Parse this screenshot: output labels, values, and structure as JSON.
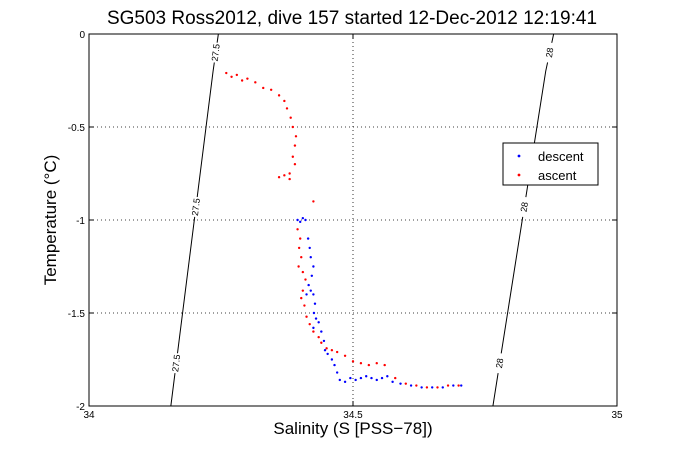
{
  "chart_data": {
    "type": "scatter",
    "title": "SG503 Ross2012, dive 157 started 12-Dec-2012 12:19:41",
    "xlabel": "Salinity (S [PSS−78])",
    "ylabel": "Temperature (°C)",
    "xlim": [
      34,
      35
    ],
    "ylim": [
      -2,
      0
    ],
    "x_ticks": [
      "34",
      "34.5",
      "35"
    ],
    "y_ticks": [
      "0",
      "-0.5",
      "-1",
      "-1.5",
      "-2"
    ],
    "grid": true,
    "legend_position": "right",
    "isopycnal_labels": [
      "27.5",
      "27.5",
      "27.5",
      "28",
      "28",
      "28"
    ],
    "isopycnals": [
      {
        "label": "27.5",
        "points": [
          [
            34.155,
            -2.0
          ],
          [
            34.235,
            -0.2
          ],
          [
            34.245,
            0.0
          ]
        ]
      },
      {
        "label": "28",
        "points": [
          [
            34.765,
            -2.0
          ],
          [
            34.865,
            -0.2
          ],
          [
            34.88,
            0.0
          ]
        ]
      }
    ],
    "series": [
      {
        "name": "descent",
        "color": "#0000ff",
        "points": [
          [
            34.395,
            -1.0
          ],
          [
            34.4,
            -1.01
          ],
          [
            34.405,
            -0.99
          ],
          [
            34.41,
            -1.0
          ],
          [
            34.415,
            -1.1
          ],
          [
            34.418,
            -1.15
          ],
          [
            34.42,
            -1.2
          ],
          [
            34.425,
            -1.25
          ],
          [
            34.422,
            -1.3
          ],
          [
            34.416,
            -1.35
          ],
          [
            34.412,
            -1.4
          ],
          [
            34.42,
            -1.38
          ],
          [
            34.425,
            -1.4
          ],
          [
            34.428,
            -1.45
          ],
          [
            34.426,
            -1.5
          ],
          [
            34.43,
            -1.53
          ],
          [
            34.435,
            -1.55
          ],
          [
            34.425,
            -1.58
          ],
          [
            34.44,
            -1.6
          ],
          [
            34.445,
            -1.65
          ],
          [
            34.447,
            -1.7
          ],
          [
            34.452,
            -1.72
          ],
          [
            34.46,
            -1.75
          ],
          [
            34.465,
            -1.78
          ],
          [
            34.47,
            -1.82
          ],
          [
            34.475,
            -1.86
          ],
          [
            34.485,
            -1.87
          ],
          [
            34.495,
            -1.85
          ],
          [
            34.505,
            -1.86
          ],
          [
            34.515,
            -1.85
          ],
          [
            34.525,
            -1.84
          ],
          [
            34.535,
            -1.85
          ],
          [
            34.545,
            -1.86
          ],
          [
            34.555,
            -1.85
          ],
          [
            34.565,
            -1.84
          ],
          [
            34.575,
            -1.87
          ],
          [
            34.59,
            -1.88
          ],
          [
            34.61,
            -1.89
          ],
          [
            34.63,
            -1.9
          ],
          [
            34.65,
            -1.9
          ],
          [
            34.67,
            -1.9
          ],
          [
            34.69,
            -1.89
          ],
          [
            34.705,
            -1.89
          ]
        ]
      },
      {
        "name": "ascent",
        "color": "#ff0000",
        "points": [
          [
            34.26,
            -0.21
          ],
          [
            34.27,
            -0.23
          ],
          [
            34.28,
            -0.22
          ],
          [
            34.29,
            -0.25
          ],
          [
            34.3,
            -0.24
          ],
          [
            34.315,
            -0.26
          ],
          [
            34.33,
            -0.29
          ],
          [
            34.345,
            -0.3
          ],
          [
            34.36,
            -0.33
          ],
          [
            34.37,
            -0.36
          ],
          [
            34.375,
            -0.4
          ],
          [
            34.382,
            -0.45
          ],
          [
            34.386,
            -0.5
          ],
          [
            34.392,
            -0.55
          ],
          [
            34.39,
            -0.6
          ],
          [
            34.386,
            -0.66
          ],
          [
            34.39,
            -0.7
          ],
          [
            34.38,
            -0.75
          ],
          [
            34.37,
            -0.76
          ],
          [
            34.36,
            -0.77
          ],
          [
            34.38,
            -0.78
          ],
          [
            34.425,
            -0.9
          ],
          [
            34.395,
            -1.05
          ],
          [
            34.4,
            -1.1
          ],
          [
            34.398,
            -1.15
          ],
          [
            34.402,
            -1.2
          ],
          [
            34.397,
            -1.25
          ],
          [
            34.405,
            -1.28
          ],
          [
            34.41,
            -1.32
          ],
          [
            34.405,
            -1.38
          ],
          [
            34.402,
            -1.42
          ],
          [
            34.408,
            -1.46
          ],
          [
            34.412,
            -1.52
          ],
          [
            34.418,
            -1.56
          ],
          [
            34.425,
            -1.6
          ],
          [
            34.435,
            -1.63
          ],
          [
            34.44,
            -1.66
          ],
          [
            34.45,
            -1.69
          ],
          [
            34.46,
            -1.7
          ],
          [
            34.47,
            -1.71
          ],
          [
            34.485,
            -1.73
          ],
          [
            34.5,
            -1.76
          ],
          [
            34.515,
            -1.77
          ],
          [
            34.53,
            -1.78
          ],
          [
            34.545,
            -1.77
          ],
          [
            34.56,
            -1.78
          ],
          [
            34.58,
            -1.85
          ],
          [
            34.6,
            -1.88
          ],
          [
            34.62,
            -1.89
          ],
          [
            34.64,
            -1.9
          ],
          [
            34.66,
            -1.9
          ],
          [
            34.68,
            -1.89
          ],
          [
            34.7,
            -1.89
          ]
        ]
      }
    ]
  }
}
